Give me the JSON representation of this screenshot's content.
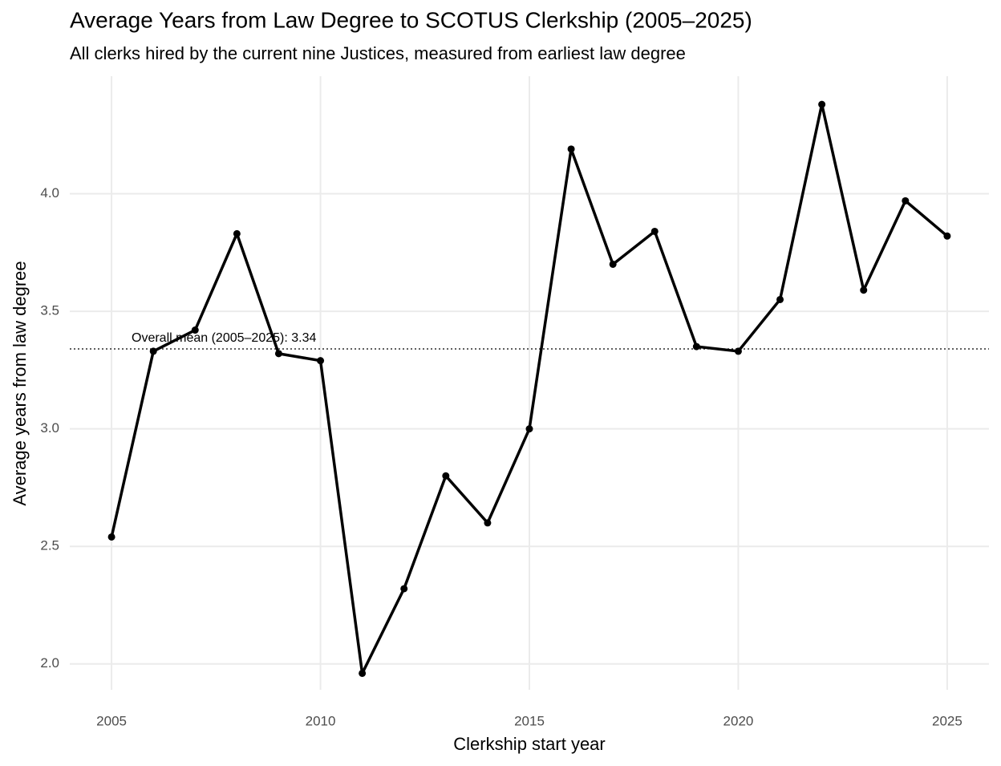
{
  "chart_data": {
    "type": "line",
    "title": "Average Years from Law Degree to SCOTUS Clerkship (2005–2025)",
    "subtitle": "All clerks hired by the current nine Justices, measured from earliest law degree",
    "x_label": "Clerkship start year",
    "y_label": "Average years from law degree",
    "x": [
      2005,
      2006,
      2007,
      2008,
      2009,
      2010,
      2011,
      2012,
      2013,
      2014,
      2015,
      2016,
      2017,
      2018,
      2019,
      2020,
      2021,
      2022,
      2023,
      2024,
      2025
    ],
    "values": [
      2.54,
      3.33,
      3.42,
      3.83,
      3.32,
      3.29,
      1.96,
      2.32,
      2.8,
      2.6,
      3.0,
      4.19,
      3.7,
      3.84,
      3.35,
      3.33,
      3.55,
      4.38,
      3.59,
      3.97,
      3.82
    ],
    "color": "#000000",
    "mean": 3.34,
    "mean_label": "Overall mean (2005–2025): 3.34",
    "xlim": [
      2004,
      2026
    ],
    "ylim": [
      1.89,
      4.5
    ],
    "xticks": [
      2005,
      2010,
      2015,
      2020,
      2025
    ],
    "yticks": [
      {
        "value": 2,
        "label": "2.0"
      },
      2.5,
      {
        "value": 3,
        "label": "3.0"
      },
      3.5,
      {
        "value": 4,
        "label": "4.0"
      }
    ],
    "grid": true
  }
}
